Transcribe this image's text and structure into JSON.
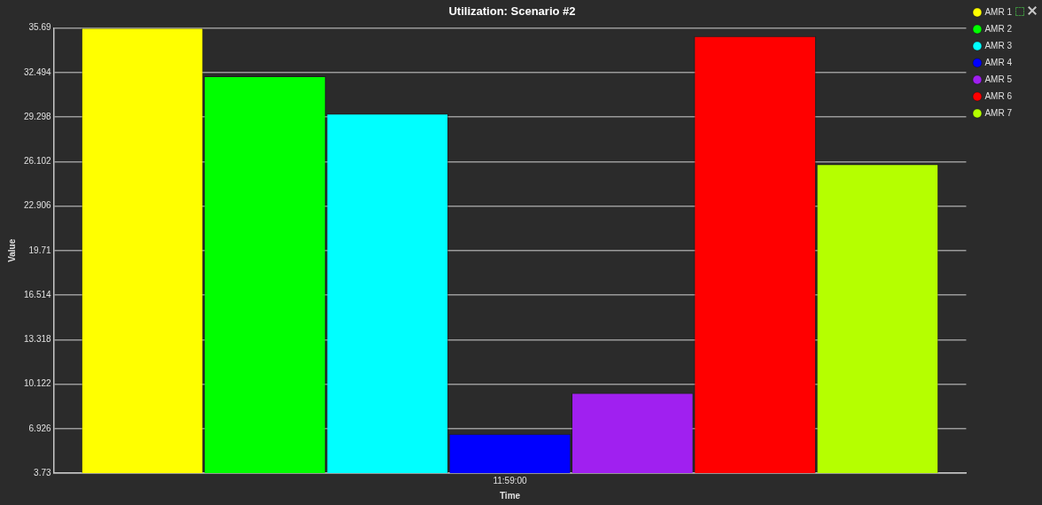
{
  "chart_data": {
    "type": "bar",
    "title": "Utilization: Scenario #2",
    "xlabel": "Time",
    "ylabel": "Value",
    "categories": [
      "11:59:00"
    ],
    "series": [
      {
        "name": "AMR 1",
        "color": "#ffff00",
        "values": [
          35.69
        ]
      },
      {
        "name": "AMR 2",
        "color": "#00ff00",
        "values": [
          32.23
        ]
      },
      {
        "name": "AMR 3",
        "color": "#00ffff",
        "values": [
          29.54
        ]
      },
      {
        "name": "AMR 4",
        "color": "#0000ff",
        "values": [
          6.54
        ]
      },
      {
        "name": "AMR 5",
        "color": "#a020f0",
        "values": [
          9.49
        ]
      },
      {
        "name": "AMR 6",
        "color": "#ff0000",
        "values": [
          35.11
        ]
      },
      {
        "name": "AMR 7",
        "color": "#b5ff00",
        "values": [
          25.91
        ]
      }
    ],
    "ylim": [
      3.73,
      35.69
    ],
    "yticks": [
      3.73,
      6.926,
      10.122,
      13.318,
      16.514,
      19.71,
      22.906,
      26.102,
      29.298,
      32.494,
      35.69
    ],
    "grid": "y",
    "legend": "top right"
  }
}
